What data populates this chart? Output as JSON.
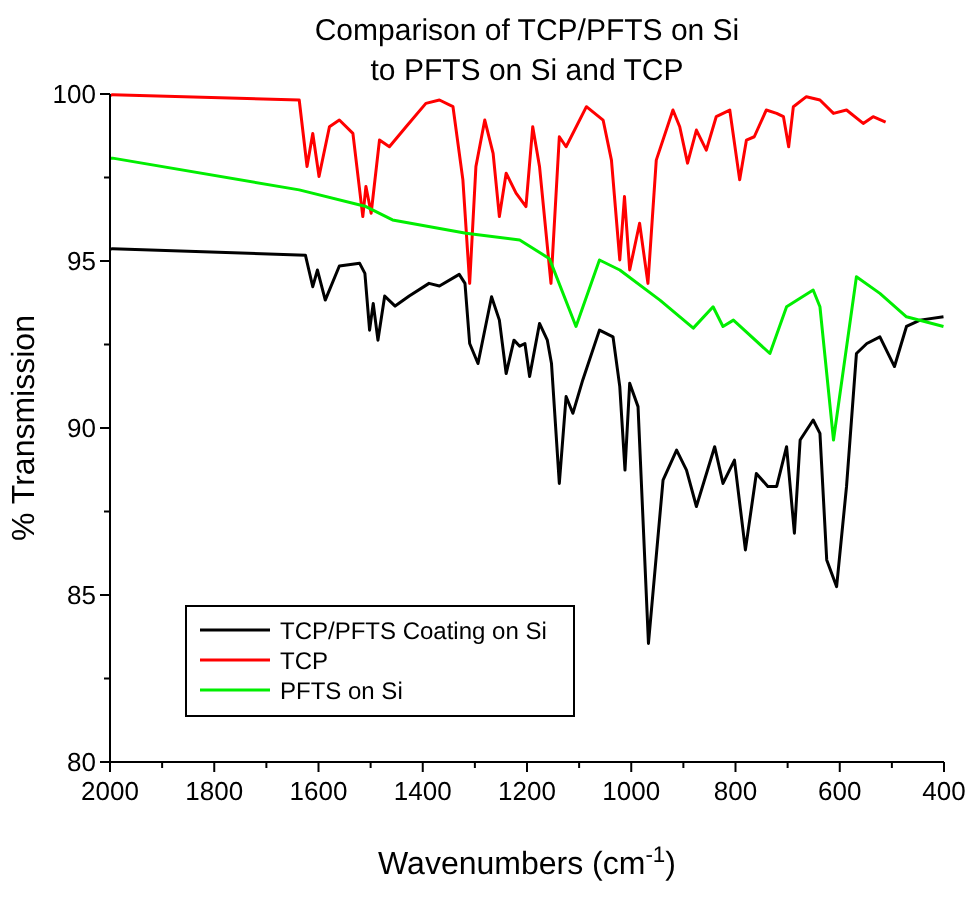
{
  "chart_data": {
    "type": "line",
    "title": "Comparison of TCP/PFTS on Si to PFTS on Si and TCP",
    "xlabel": "Wavenumbers (cm$^{-1}$)",
    "ylabel": "% Transmission",
    "xlim": [
      2000,
      400
    ],
    "xticks": [
      2000,
      {
        "value": 1900,
        "label": null
      },
      1800,
      {
        "value": 1700,
        "label": null
      },
      1600,
      {
        "value": 1500,
        "label": null
      },
      1400,
      {
        "value": 1300,
        "label": null
      },
      1200,
      {
        "value": 1100,
        "label": null
      },
      1000,
      {
        "value": 900,
        "label": null
      },
      800,
      {
        "value": 700,
        "label": null
      },
      600,
      {
        "value": 500,
        "label": null
      },
      400
    ],
    "ylim": [
      80,
      100
    ],
    "yticks": [
      80,
      {
        "value": 82.5,
        "label": null
      },
      85,
      {
        "value": 87.5,
        "label": null
      },
      90,
      {
        "value": 92.5,
        "label": null
      },
      95,
      {
        "value": 97.5,
        "label": null
      },
      100
    ],
    "legend": "bottom left",
    "grid": false,
    "marker": "none",
    "line_style": "solid",
    "series": [
      {
        "name": "TCP/PFTS Coating on Si",
        "color": "#000000",
        "x": [
          2000,
          1995,
          1625,
          1611,
          1602,
          1587,
          1560,
          1521,
          1511,
          1502,
          1495,
          1486,
          1473,
          1453,
          1426,
          1388,
          1368,
          1330,
          1319,
          1310,
          1294,
          1268,
          1253,
          1240,
          1225,
          1214,
          1204,
          1195,
          1176,
          1161,
          1153,
          1138,
          1125,
          1112,
          1093,
          1061,
          1035,
          1022,
          1012,
          1003,
          987,
          967,
          939,
          913,
          894,
          875,
          840,
          824,
          802,
          781,
          760,
          738,
          721,
          702,
          687,
          676,
          651,
          638,
          625,
          606,
          587,
          568,
          548,
          523,
          495,
          472,
          446,
          401
        ],
        "values": [
          95.35,
          95.37,
          95.17,
          94.23,
          94.73,
          93.83,
          94.85,
          94.93,
          94.63,
          92.93,
          93.73,
          92.63,
          93.95,
          93.65,
          93.95,
          94.33,
          94.25,
          94.6,
          94.33,
          92.53,
          91.93,
          93.93,
          93.23,
          91.63,
          92.63,
          92.45,
          92.53,
          91.54,
          93.13,
          92.63,
          91.93,
          88.34,
          90.94,
          90.44,
          91.44,
          92.93,
          92.73,
          91.24,
          88.74,
          91.34,
          90.64,
          83.55,
          88.44,
          89.34,
          88.74,
          87.65,
          89.44,
          88.34,
          89.04,
          86.35,
          88.64,
          88.25,
          88.25,
          89.44,
          86.85,
          89.64,
          90.24,
          89.84,
          86.05,
          85.25,
          88.25,
          92.23,
          92.53,
          92.73,
          91.84,
          93.04,
          93.23,
          93.33
        ]
      },
      {
        "name": "TCP",
        "color": "#ff0000",
        "x": [
          2000,
          1995,
          1637,
          1622,
          1611,
          1599,
          1579,
          1560,
          1534,
          1515,
          1509,
          1499,
          1483,
          1464,
          1432,
          1394,
          1368,
          1342,
          1323,
          1310,
          1298,
          1281,
          1265,
          1253,
          1240,
          1221,
          1202,
          1189,
          1176,
          1154,
          1138,
          1125,
          1086,
          1054,
          1038,
          1022,
          1013,
          1003,
          984,
          968,
          952,
          920,
          907,
          892,
          875,
          856,
          837,
          811,
          792,
          779,
          764,
          741,
          721,
          708,
          698,
          689,
          664,
          638,
          612,
          587,
          555,
          536,
          512
        ],
        "values": [
          99.95,
          99.98,
          99.82,
          97.83,
          98.82,
          97.53,
          99.02,
          99.22,
          98.82,
          96.33,
          97.23,
          96.43,
          98.62,
          98.42,
          99.02,
          99.72,
          99.82,
          99.62,
          97.43,
          94.33,
          97.83,
          99.22,
          98.22,
          96.33,
          97.63,
          97.03,
          96.63,
          99.02,
          97.83,
          94.33,
          98.72,
          98.42,
          99.62,
          99.22,
          98.02,
          95.03,
          96.93,
          94.73,
          96.13,
          94.33,
          98.02,
          99.52,
          99.02,
          97.93,
          98.92,
          98.32,
          99.32,
          99.52,
          97.43,
          98.62,
          98.72,
          99.52,
          99.42,
          99.32,
          98.42,
          99.62,
          99.92,
          99.82,
          99.42,
          99.52,
          99.12,
          99.32,
          99.16
        ]
      },
      {
        "name": "PFTS on Si",
        "color": "#00ee00",
        "x": [
          2000,
          1995,
          1637,
          1509,
          1458,
          1317,
          1214,
          1157,
          1106,
          1061,
          1022,
          945,
          881,
          843,
          824,
          804,
          734,
          702,
          651,
          638,
          612,
          568,
          523,
          472,
          401
        ],
        "values": [
          98.08,
          98.08,
          97.13,
          96.63,
          96.23,
          95.83,
          95.63,
          95.07,
          93.04,
          95.03,
          94.73,
          93.83,
          92.99,
          93.63,
          93.04,
          93.23,
          92.23,
          93.63,
          94.13,
          93.63,
          89.64,
          94.53,
          94.03,
          93.33,
          93.04
        ]
      }
    ]
  }
}
